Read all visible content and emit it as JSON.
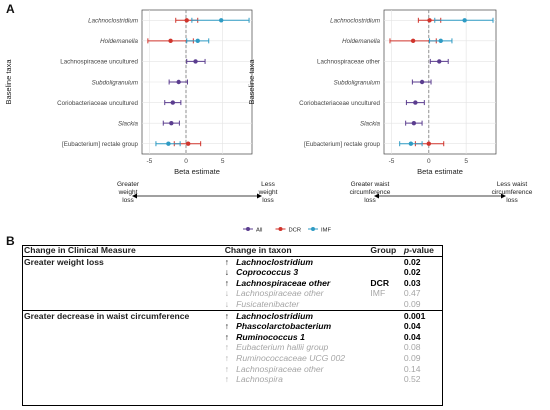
{
  "figure": {
    "panel_a_letter": "A",
    "panel_b_letter": "B"
  },
  "chart_data": [
    {
      "type": "scatter",
      "ylabel": "Baseline taxa",
      "xlabel": "Beta estimate",
      "xlim": [
        -6,
        9
      ],
      "xticks": [
        -5,
        0,
        5
      ],
      "grid": true,
      "direction_left": "Greater weight loss",
      "direction_right": "Less weight loss",
      "categories": [
        "Lachnoclostridium",
        "Holdemanella",
        "Lachnospiraceae  uncultured",
        "Subdoligranulum",
        "Coriobacteriaceae uncultured",
        "Slackia",
        "[Eubacterium] rectale group"
      ],
      "category_italic": [
        true,
        true,
        false,
        true,
        false,
        true,
        false
      ],
      "series": [
        {
          "name": "All",
          "color": "#5b3d8f",
          "points": [
            {
              "category": "Lachnospiraceae  uncultured",
              "est": 1.3,
              "lo": 0.1,
              "hi": 2.6
            },
            {
              "category": "Subdoligranulum",
              "est": -1.0,
              "lo": -2.3,
              "hi": 0.2
            },
            {
              "category": "Coriobacteriaceae uncultured",
              "est": -1.8,
              "lo": -2.9,
              "hi": -0.7
            },
            {
              "category": "Slackia",
              "est": -2.0,
              "lo": -3.1,
              "hi": -0.9
            }
          ]
        },
        {
          "name": "DCR",
          "color": "#d0342c",
          "points": [
            {
              "category": "Lachnoclostridium",
              "est": 0.1,
              "lo": -1.4,
              "hi": 1.6
            },
            {
              "category": "Holdemanella",
              "est": -2.1,
              "lo": -5.2,
              "hi": 1.0
            },
            {
              "category": "[Eubacterium] rectale group",
              "est": 0.3,
              "lo": -1.6,
              "hi": 2.0
            }
          ]
        },
        {
          "name": "IMF",
          "color": "#2e9bc4",
          "points": [
            {
              "category": "Lachnoclostridium",
              "est": 4.8,
              "lo": 0.8,
              "hi": 8.6
            },
            {
              "category": "Holdemanella",
              "est": 1.6,
              "lo": 0.1,
              "hi": 3.1
            },
            {
              "category": "[Eubacterium] rectale group",
              "est": -2.4,
              "lo": -4.1,
              "hi": -0.8
            }
          ]
        }
      ]
    },
    {
      "type": "scatter",
      "ylabel": "Baseline taxa",
      "xlabel": "Beta estimate",
      "xlim": [
        -6,
        9
      ],
      "xticks": [
        -5,
        0,
        5
      ],
      "grid": true,
      "direction_left": "Greater waist circumference loss",
      "direction_right": "Less waist circumference loss",
      "categories": [
        "Lachnoclostridium",
        "Holdemanella",
        "Lachnospiraceae  other",
        "Subdoligranulum",
        "Coriobacteriaceae uncultured",
        "Slackia",
        "[Eubacterium] rectale group"
      ],
      "category_italic": [
        true,
        true,
        false,
        true,
        false,
        true,
        false
      ],
      "series": [
        {
          "name": "All",
          "color": "#5b3d8f",
          "points": [
            {
              "category": "Lachnospiraceae  other",
              "est": 1.4,
              "lo": 0.2,
              "hi": 2.6
            },
            {
              "category": "Subdoligranulum",
              "est": -0.9,
              "lo": -2.2,
              "hi": 0.3
            },
            {
              "category": "Coriobacteriaceae uncultured",
              "est": -1.8,
              "lo": -3.0,
              "hi": -0.6
            },
            {
              "category": "Slackia",
              "est": -2.0,
              "lo": -3.1,
              "hi": -0.9
            }
          ]
        },
        {
          "name": "DCR",
          "color": "#d0342c",
          "points": [
            {
              "category": "Lachnoclostridium",
              "est": 0.1,
              "lo": -1.4,
              "hi": 1.6
            },
            {
              "category": "Holdemanella",
              "est": -2.1,
              "lo": -5.2,
              "hi": 1.0
            },
            {
              "category": "[Eubacterium] rectale group",
              "est": 0.0,
              "lo": -1.8,
              "hi": 2.0
            }
          ]
        },
        {
          "name": "IMF",
          "color": "#2e9bc4",
          "points": [
            {
              "category": "Lachnoclostridium",
              "est": 4.8,
              "lo": 0.8,
              "hi": 8.6
            },
            {
              "category": "Holdemanella",
              "est": 1.6,
              "lo": 0.1,
              "hi": 3.1
            },
            {
              "category": "[Eubacterium] rectale group",
              "est": -2.4,
              "lo": -3.9,
              "hi": -0.9
            }
          ]
        }
      ]
    }
  ],
  "legend": [
    {
      "name": "All",
      "color": "#5b3d8f"
    },
    {
      "name": "DCR",
      "color": "#d0342c"
    },
    {
      "name": "IMF",
      "color": "#2e9bc4"
    }
  ],
  "table": {
    "headers": {
      "measure": "Change in Clinical Measure",
      "taxon": "Change in taxon",
      "group": "Group",
      "p": "p",
      "p_suffix": "-value"
    },
    "sections": [
      {
        "label": "Greater weight loss",
        "rows": [
          {
            "arrow": "↑",
            "taxon": "Lachnoclostridium",
            "group": "",
            "p": "0.02",
            "significant": true
          },
          {
            "arrow": "↓",
            "taxon": "Coprococcus 3",
            "group": "",
            "p": "0.02",
            "significant": true
          },
          {
            "arrow": "↑",
            "taxon": "Lachnospiraceae other",
            "group": "DCR",
            "p": "0.03",
            "significant": true
          },
          {
            "arrow": "↓",
            "taxon": "Lachnospiraceae other",
            "group": "IMF",
            "p": "0.47",
            "significant": false
          },
          {
            "arrow": "↓",
            "taxon": "Fusicatenibacter",
            "group": "",
            "p": "0.09",
            "significant": false
          }
        ]
      },
      {
        "label": "Greater decrease in waist circumference",
        "rows": [
          {
            "arrow": "↑",
            "taxon": "Lachnoclostridium",
            "group": "",
            "p": "0.001",
            "significant": true
          },
          {
            "arrow": "↑",
            "taxon": "Phascolarctobacterium",
            "group": "",
            "p": "0.04",
            "significant": true
          },
          {
            "arrow": "↑",
            "taxon": "Ruminococcus 1",
            "group": "",
            "p": "0.04",
            "significant": true
          },
          {
            "arrow": "↑",
            "taxon": "Eubacterium hallii group",
            "group": "",
            "p": "0.08",
            "significant": false
          },
          {
            "arrow": "↑",
            "taxon": "Ruminococcaceae UCG 002",
            "group": "",
            "p": "0.09",
            "significant": false
          },
          {
            "arrow": "↑",
            "taxon": "Lachnospiraceae other",
            "group": "",
            "p": "0.14",
            "significant": false
          },
          {
            "arrow": "↑",
            "taxon": "Lachnospira",
            "group": "",
            "p": "0.52",
            "significant": false
          }
        ]
      }
    ]
  }
}
